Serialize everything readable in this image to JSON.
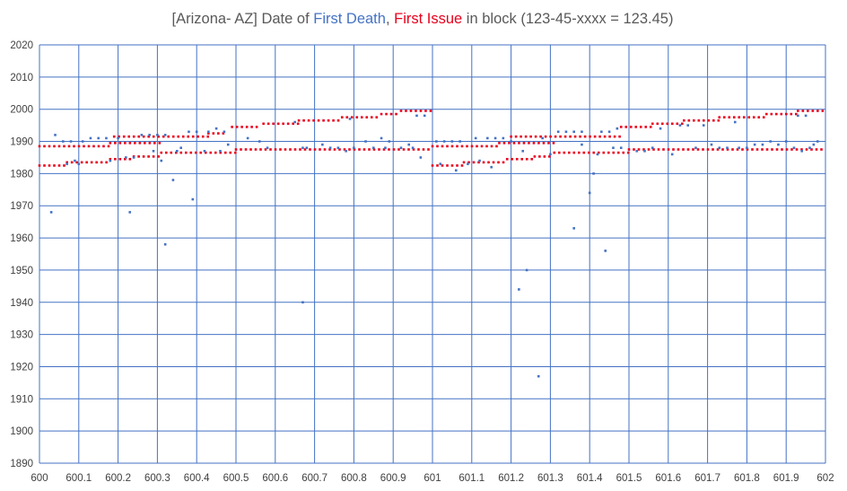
{
  "chart_data": {
    "type": "scatter",
    "title": {
      "prefix": "[Arizona- AZ] Date of ",
      "series1": "First Death",
      "sep": ", ",
      "series2": "First Issue",
      "suffix": " in block (123-45-xxxx = 123.45)"
    },
    "xlabel": "",
    "ylabel": "",
    "xlim": [
      600,
      602
    ],
    "ylim": [
      1890,
      2020
    ],
    "grid": true,
    "x_ticks": [
      "600",
      "600.1",
      "600.2",
      "600.3",
      "600.4",
      "600.5",
      "600.6",
      "600.7",
      "600.8",
      "600.9",
      "601",
      "601.1",
      "601.2",
      "601.3",
      "601.4",
      "601.5",
      "601.6",
      "601.7",
      "601.8",
      "601.9",
      "602"
    ],
    "y_ticks": [
      "2020",
      "2010",
      "2000",
      "1990",
      "1980",
      "1970",
      "1960",
      "1950",
      "1940",
      "1930",
      "1920",
      "1910",
      "1900",
      "1890"
    ],
    "colors": {
      "first_death": "#4472C4",
      "first_issue": "#E8001C",
      "grid": "#4472C4",
      "title": "#595959"
    },
    "series": [
      {
        "name": "First Issue",
        "color": "#E8001C",
        "lines": [
          {
            "x0": 600.0,
            "x1": 600.07,
            "y": 1982.5
          },
          {
            "x0": 600.07,
            "x1": 600.18,
            "y": 1983.5
          },
          {
            "x0": 600.18,
            "x1": 600.24,
            "y": 1984.5
          },
          {
            "x0": 600.24,
            "x1": 600.31,
            "y": 1985.3
          },
          {
            "x0": 600.31,
            "x1": 600.5,
            "y": 1986.5
          },
          {
            "x0": 600.5,
            "x1": 601.0,
            "y": 1987.5
          },
          {
            "x0": 600.0,
            "x1": 600.18,
            "y": 1988.5
          },
          {
            "x0": 600.18,
            "x1": 600.31,
            "y": 1989.5
          },
          {
            "x0": 600.19,
            "x1": 600.43,
            "y": 1991.5
          },
          {
            "x0": 600.43,
            "x1": 600.47,
            "y": 1992.5
          },
          {
            "x0": 600.49,
            "x1": 600.56,
            "y": 1994.5
          },
          {
            "x0": 600.57,
            "x1": 600.66,
            "y": 1995.5
          },
          {
            "x0": 600.66,
            "x1": 600.77,
            "y": 1996.5
          },
          {
            "x0": 600.77,
            "x1": 600.87,
            "y": 1997.5
          },
          {
            "x0": 600.87,
            "x1": 600.92,
            "y": 1998.5
          },
          {
            "x0": 600.92,
            "x1": 601.0,
            "y": 1999.5
          },
          {
            "x0": 601.0,
            "x1": 601.08,
            "y": 1982.5
          },
          {
            "x0": 601.08,
            "x1": 601.19,
            "y": 1983.5
          },
          {
            "x0": 601.19,
            "x1": 601.26,
            "y": 1984.5
          },
          {
            "x0": 601.26,
            "x1": 601.31,
            "y": 1985.3
          },
          {
            "x0": 601.31,
            "x1": 601.5,
            "y": 1986.5
          },
          {
            "x0": 601.5,
            "x1": 602.0,
            "y": 1987.5
          },
          {
            "x0": 601.0,
            "x1": 601.17,
            "y": 1988.5
          },
          {
            "x0": 601.17,
            "x1": 601.31,
            "y": 1989.5
          },
          {
            "x0": 601.2,
            "x1": 601.48,
            "y": 1991.5
          },
          {
            "x0": 601.48,
            "x1": 601.56,
            "y": 1994.5
          },
          {
            "x0": 601.56,
            "x1": 601.64,
            "y": 1995.5
          },
          {
            "x0": 601.64,
            "x1": 601.73,
            "y": 1996.5
          },
          {
            "x0": 601.73,
            "x1": 601.85,
            "y": 1997.5
          },
          {
            "x0": 601.85,
            "x1": 601.93,
            "y": 1998.5
          },
          {
            "x0": 601.93,
            "x1": 602.0,
            "y": 1999.5
          }
        ]
      },
      {
        "name": "First Death",
        "color": "#4472C4",
        "points": [
          [
            600.03,
            1968
          ],
          [
            600.04,
            1992
          ],
          [
            600.06,
            1990
          ],
          [
            600.07,
            1983
          ],
          [
            600.08,
            1990
          ],
          [
            600.09,
            1984
          ],
          [
            600.1,
            1983
          ],
          [
            600.11,
            1990
          ],
          [
            600.13,
            1991
          ],
          [
            600.15,
            1991
          ],
          [
            600.17,
            1991
          ],
          [
            600.18,
            1984
          ],
          [
            600.2,
            1991
          ],
          [
            600.22,
            1985
          ],
          [
            600.23,
            1968
          ],
          [
            600.24,
            1985
          ],
          [
            600.26,
            1992
          ],
          [
            600.28,
            1992
          ],
          [
            600.29,
            1987
          ],
          [
            600.3,
            1992
          ],
          [
            600.31,
            1984
          ],
          [
            600.32,
            1992
          ],
          [
            600.32,
            1958
          ],
          [
            600.34,
            1978
          ],
          [
            600.35,
            1987
          ],
          [
            600.36,
            1988
          ],
          [
            600.38,
            1993
          ],
          [
            600.39,
            1972
          ],
          [
            600.4,
            1993
          ],
          [
            600.42,
            1987
          ],
          [
            600.43,
            1993
          ],
          [
            600.45,
            1994
          ],
          [
            600.46,
            1987
          ],
          [
            600.47,
            1993
          ],
          [
            600.48,
            1989
          ],
          [
            600.53,
            1991
          ],
          [
            600.56,
            1990
          ],
          [
            600.58,
            1988
          ],
          [
            600.65,
            1996
          ],
          [
            600.67,
            1988
          ],
          [
            600.67,
            1940
          ],
          [
            600.68,
            1988
          ],
          [
            600.72,
            1989
          ],
          [
            600.74,
            1988
          ],
          [
            600.76,
            1988
          ],
          [
            600.78,
            1987
          ],
          [
            600.79,
            1997
          ],
          [
            600.8,
            1988
          ],
          [
            600.83,
            1990
          ],
          [
            600.85,
            1988
          ],
          [
            600.87,
            1991
          ],
          [
            600.88,
            1988
          ],
          [
            600.89,
            1990
          ],
          [
            600.92,
            1988
          ],
          [
            600.94,
            1989
          ],
          [
            600.95,
            1988
          ],
          [
            600.96,
            1998
          ],
          [
            600.97,
            1985
          ],
          [
            600.98,
            1998
          ],
          [
            601.01,
            1990
          ],
          [
            601.02,
            1983
          ],
          [
            601.03,
            1990
          ],
          [
            601.05,
            1990
          ],
          [
            601.06,
            1981
          ],
          [
            601.07,
            1990
          ],
          [
            601.09,
            1983
          ],
          [
            601.11,
            1991
          ],
          [
            601.12,
            1984
          ],
          [
            601.14,
            1991
          ],
          [
            601.15,
            1982
          ],
          [
            601.16,
            1991
          ],
          [
            601.18,
            1991
          ],
          [
            601.2,
            1990
          ],
          [
            601.22,
            1944
          ],
          [
            601.23,
            1987
          ],
          [
            601.24,
            1950
          ],
          [
            601.27,
            1917
          ],
          [
            601.28,
            1991
          ],
          [
            601.3,
            1986
          ],
          [
            601.32,
            1993
          ],
          [
            601.34,
            1993
          ],
          [
            601.36,
            1963
          ],
          [
            601.36,
            1993
          ],
          [
            601.38,
            1989
          ],
          [
            601.38,
            1993
          ],
          [
            601.4,
            1974
          ],
          [
            601.41,
            1980
          ],
          [
            601.42,
            1986
          ],
          [
            601.43,
            1993
          ],
          [
            601.44,
            1956
          ],
          [
            601.45,
            1993
          ],
          [
            601.46,
            1988
          ],
          [
            601.47,
            1994
          ],
          [
            601.48,
            1988
          ],
          [
            601.52,
            1987
          ],
          [
            601.54,
            1987
          ],
          [
            601.56,
            1988
          ],
          [
            601.58,
            1994
          ],
          [
            601.61,
            1986
          ],
          [
            601.63,
            1995
          ],
          [
            601.65,
            1995
          ],
          [
            601.67,
            1988
          ],
          [
            601.69,
            1995
          ],
          [
            601.71,
            1989
          ],
          [
            601.73,
            1988
          ],
          [
            601.75,
            1988
          ],
          [
            601.77,
            1996
          ],
          [
            601.78,
            1988
          ],
          [
            601.8,
            1988
          ],
          [
            601.82,
            1989
          ],
          [
            601.84,
            1989
          ],
          [
            601.86,
            1990
          ],
          [
            601.88,
            1989
          ],
          [
            601.9,
            1990
          ],
          [
            601.92,
            1988
          ],
          [
            601.93,
            1998
          ],
          [
            601.94,
            1987
          ],
          [
            601.95,
            1998
          ],
          [
            601.96,
            1988
          ],
          [
            601.97,
            1989
          ],
          [
            601.98,
            1990
          ]
        ]
      }
    ]
  }
}
